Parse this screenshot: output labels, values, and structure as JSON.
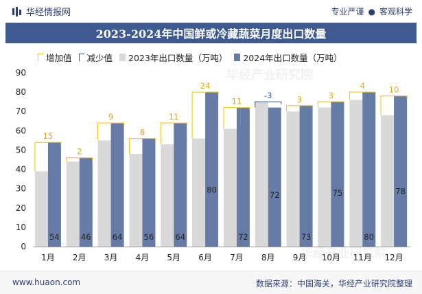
{
  "header": {
    "brand": "华经情报网",
    "tagline_left": "专业严谨",
    "tagline_dot": "●",
    "tagline_right": "客观科学"
  },
  "footer": {
    "site": "www.huaon.com",
    "source": "数据来源：中国海关，华经产业研究院整理"
  },
  "watermarks": [
    "华经产业研究院",
    "华经产业研究院"
  ],
  "colors": {
    "title_bg": "#3f5a8f",
    "bar_2023": "#d9d9d9",
    "bar_2024": "#667ca6",
    "increase": "#f2c200",
    "decrease": "#2e5fa5"
  },
  "chart_data": {
    "type": "bar",
    "title": "2023-2024年中国鲜或冷藏蔬菜月度出口数量",
    "legend": [
      "增加值",
      "减少值",
      "2023年出口数量（万吨）",
      "2024年出口数量（万吨）"
    ],
    "categories": [
      "1月",
      "2月",
      "3月",
      "4月",
      "5月",
      "6月",
      "7月",
      "8月",
      "9月",
      "10月",
      "11月",
      "12月"
    ],
    "series": [
      {
        "name": "2023年出口数量（万吨）",
        "values": [
          39,
          44,
          55,
          48,
          53,
          56,
          61,
          75,
          70,
          72,
          76,
          68
        ]
      },
      {
        "name": "2024年出口数量（万吨）",
        "values": [
          54,
          46,
          64,
          56,
          64,
          80,
          72,
          72,
          73,
          75,
          80,
          78
        ]
      }
    ],
    "change_labels": [
      "15",
      "2",
      "9",
      "8",
      "11",
      "24",
      "11",
      "-3",
      "3",
      "3",
      "4",
      "10"
    ],
    "ylim": [
      0,
      90
    ],
    "yticks": [
      0,
      10,
      20,
      30,
      40,
      50,
      60,
      70,
      80,
      90
    ],
    "legend_position": "top-left",
    "grid": false
  }
}
